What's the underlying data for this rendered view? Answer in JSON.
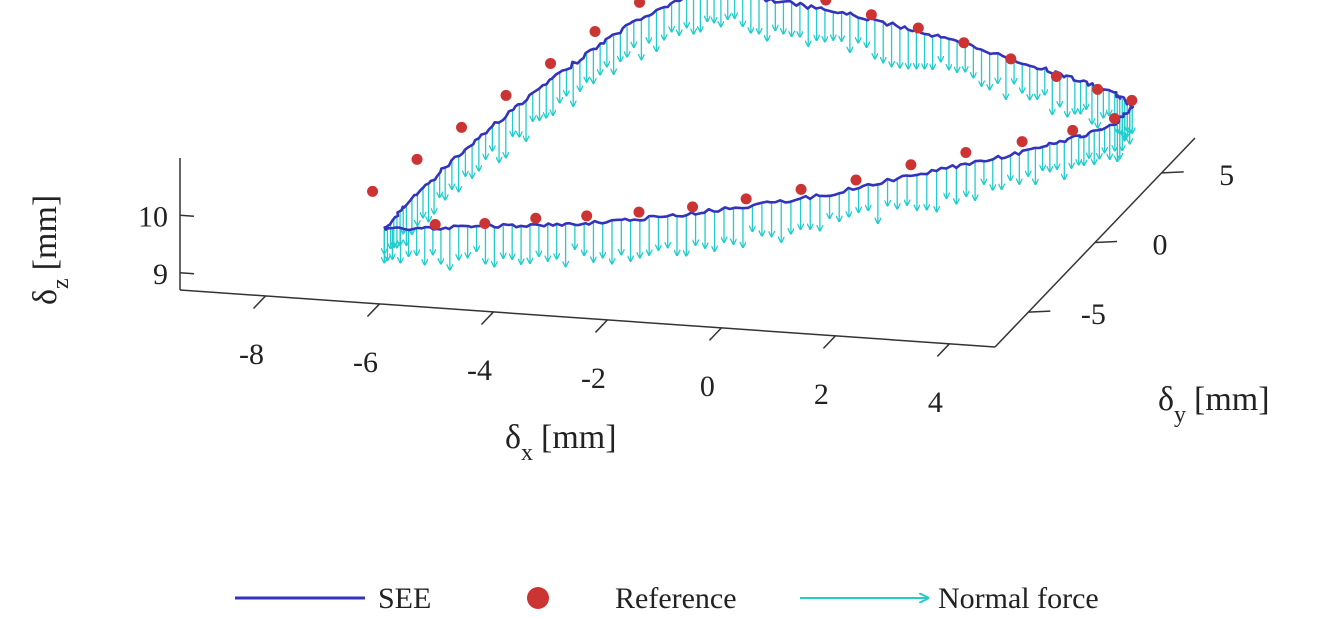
{
  "chart_data": {
    "type": "3d-line-with-vectors",
    "axes": {
      "x": {
        "symbol": "δ",
        "subscript": "x",
        "unit": "[mm]",
        "ticks": [
          -8,
          -6,
          -4,
          -2,
          0,
          2,
          4
        ],
        "tick_labels": [
          "-8",
          "-6",
          "-4",
          "-2",
          "0",
          "2",
          "4"
        ],
        "range": [
          -9.5,
          4.8
        ]
      },
      "y": {
        "symbol": "δ",
        "subscript": "y",
        "unit": "[mm]",
        "ticks": [
          -5,
          0,
          5
        ],
        "tick_labels": [
          "-5",
          "0",
          "5"
        ],
        "range": [
          -7.5,
          7.5
        ]
      },
      "z": {
        "symbol": "δ",
        "subscript": "z",
        "unit": "[mm]",
        "ticks": [
          9,
          10
        ],
        "tick_labels": [
          "9",
          "10"
        ],
        "range": [
          8.7,
          11.0
        ]
      }
    },
    "grid": false,
    "legend_position": "bottom",
    "series": [
      {
        "name": "SEE",
        "kind": "line",
        "color": "#3333bb",
        "points": [
          [
            -6.5,
            -5.0,
            9.35
          ],
          [
            -6.3,
            -4.2,
            9.6
          ],
          [
            -5.9,
            -3.0,
            10.0
          ],
          [
            -5.4,
            -1.6,
            10.4
          ],
          [
            -4.9,
            -0.2,
            10.75
          ],
          [
            -4.4,
            1.2,
            11.05
          ],
          [
            -3.9,
            2.6,
            11.3
          ],
          [
            -3.3,
            4.0,
            11.45
          ],
          [
            -2.6,
            4.6,
            11.4
          ],
          [
            -1.6,
            4.6,
            11.3
          ],
          [
            -0.6,
            4.7,
            11.15
          ],
          [
            0.4,
            4.8,
            10.95
          ],
          [
            1.4,
            4.8,
            10.75
          ],
          [
            2.4,
            4.8,
            10.5
          ],
          [
            3.3,
            4.9,
            10.25
          ],
          [
            4.0,
            4.9,
            10.05
          ],
          [
            4.4,
            4.5,
            9.95
          ],
          [
            4.4,
            3.2,
            9.95
          ],
          [
            4.0,
            2.2,
            9.95
          ],
          [
            3.3,
            1.4,
            9.85
          ],
          [
            2.4,
            0.6,
            9.75
          ],
          [
            1.4,
            -0.3,
            9.65
          ],
          [
            0.4,
            -1.1,
            9.5
          ],
          [
            -0.6,
            -1.9,
            9.45
          ],
          [
            -1.6,
            -2.6,
            9.4
          ],
          [
            -2.6,
            -3.2,
            9.35
          ],
          [
            -3.6,
            -3.8,
            9.35
          ],
          [
            -4.6,
            -4.2,
            9.35
          ],
          [
            -5.6,
            -4.6,
            9.35
          ],
          [
            -6.5,
            -5.0,
            9.35
          ]
        ]
      },
      {
        "name": "Reference",
        "kind": "markers",
        "color": "#cc3333",
        "points": [
          [
            -6.8,
            -4.6,
            9.9
          ],
          [
            -6.3,
            -3.4,
            10.2
          ],
          [
            -5.8,
            -2.2,
            10.5
          ],
          [
            -5.3,
            -1.0,
            10.8
          ],
          [
            -4.8,
            0.2,
            11.1
          ],
          [
            -4.3,
            1.4,
            11.4
          ],
          [
            -3.8,
            2.6,
            11.65
          ],
          [
            -3.3,
            3.6,
            11.9
          ],
          [
            -2.6,
            4.4,
            11.85
          ],
          [
            -1.8,
            4.5,
            11.6
          ],
          [
            -1.0,
            4.6,
            11.4
          ],
          [
            -0.2,
            4.6,
            11.2
          ],
          [
            0.6,
            4.7,
            11.0
          ],
          [
            1.4,
            4.7,
            10.8
          ],
          [
            2.2,
            4.8,
            10.55
          ],
          [
            3.0,
            4.8,
            10.3
          ],
          [
            3.7,
            4.9,
            10.1
          ],
          [
            4.3,
            4.9,
            9.95
          ],
          [
            4.3,
            3.6,
            9.95
          ],
          [
            3.8,
            2.6,
            9.95
          ],
          [
            3.1,
            1.8,
            9.9
          ],
          [
            2.3,
            1.0,
            9.85
          ],
          [
            1.5,
            0.3,
            9.75
          ],
          [
            0.7,
            -0.4,
            9.6
          ],
          [
            -0.1,
            -1.1,
            9.55
          ],
          [
            -0.9,
            -1.8,
            9.5
          ],
          [
            -1.7,
            -2.4,
            9.45
          ],
          [
            -2.5,
            -3.0,
            9.45
          ],
          [
            -3.3,
            -3.5,
            9.45
          ],
          [
            -4.1,
            -3.9,
            9.45
          ],
          [
            -4.9,
            -4.3,
            9.4
          ],
          [
            -5.7,
            -4.6,
            9.4
          ]
        ]
      },
      {
        "name": "Normal force",
        "kind": "vectors",
        "color": "#22cccc",
        "arrow_length_mm": 0.55,
        "direction": "-z"
      }
    ]
  },
  "legend": {
    "items": [
      {
        "label": "SEE",
        "color": "#3333bb"
      },
      {
        "label": "Reference",
        "color": "#cc3333"
      },
      {
        "label": "Normal force",
        "color": "#22cccc"
      }
    ]
  }
}
